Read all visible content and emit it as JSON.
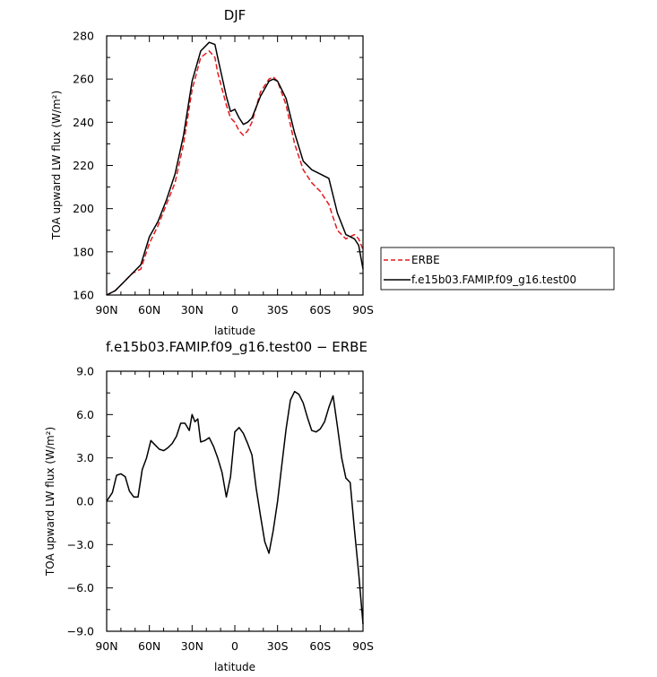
{
  "chart_data": [
    {
      "type": "line",
      "title": "DJF",
      "xlabel": "latitude",
      "ylabel": "TOA upward LW flux (W/m²)",
      "xlim": [
        90,
        -90
      ],
      "ylim": [
        160,
        280
      ],
      "xticks": [
        90,
        60,
        30,
        0,
        -30,
        -60,
        -90
      ],
      "xtick_labels": [
        "90N",
        "60N",
        "30N",
        "0",
        "30S",
        "60S",
        "90S"
      ],
      "yticks": [
        160,
        180,
        200,
        220,
        240,
        260,
        280
      ],
      "ytick_labels": [
        "160",
        "180",
        "200",
        "220",
        "240",
        "260",
        "280"
      ],
      "grid": false,
      "legend": "right",
      "series": [
        {
          "name": "ERBE",
          "color": "#e41a1c",
          "dash": "dashed",
          "x": [
            90,
            84,
            78,
            72,
            66,
            60,
            54,
            48,
            42,
            36,
            30,
            24,
            18,
            14,
            12,
            6,
            3,
            0,
            -3,
            -6,
            -9,
            -12,
            -18,
            -24,
            -27,
            -30,
            -36,
            -42,
            -48,
            -54,
            -60,
            -66,
            -72,
            -78,
            -84,
            -87,
            -90
          ],
          "y": [
            160,
            162,
            166,
            170,
            172,
            184,
            192,
            202,
            212,
            230,
            255,
            270,
            273,
            270,
            263,
            248,
            242,
            240,
            236,
            234,
            236,
            240,
            254,
            260,
            261,
            259,
            248,
            230,
            218,
            212,
            208,
            202,
            190,
            186,
            188,
            186,
            181
          ]
        },
        {
          "name": "f.e15b03.FAMIP.f09_g16.test00",
          "color": "#000000",
          "dash": "solid",
          "x": [
            90,
            84,
            78,
            72,
            66,
            60,
            54,
            48,
            42,
            36,
            30,
            24,
            18,
            14,
            12,
            6,
            3,
            0,
            -3,
            -6,
            -9,
            -12,
            -18,
            -24,
            -27,
            -30,
            -36,
            -42,
            -48,
            -54,
            -60,
            -66,
            -72,
            -78,
            -84,
            -87,
            -90
          ],
          "y": [
            160,
            162,
            166,
            170,
            174,
            187,
            194,
            204,
            216,
            234,
            259,
            273,
            277,
            276,
            270,
            252,
            245,
            246,
            242,
            239,
            240,
            242,
            252,
            259,
            260,
            259,
            251,
            235,
            222,
            218,
            216,
            214,
            198,
            188,
            186,
            183,
            172
          ]
        }
      ]
    },
    {
      "type": "line",
      "title": "f.e15b03.FAMIP.f09_g16.test00 − ERBE",
      "xlabel": "latitude",
      "ylabel": "TOA upward LW flux (W/m²)",
      "xlim": [
        90,
        -90
      ],
      "ylim": [
        -9,
        9
      ],
      "xticks": [
        90,
        60,
        30,
        0,
        -30,
        -60,
        -90
      ],
      "xtick_labels": [
        "90N",
        "60N",
        "30N",
        "0",
        "30S",
        "60S",
        "90S"
      ],
      "yticks": [
        -9,
        -6,
        -3,
        0,
        3,
        6,
        9
      ],
      "ytick_labels": [
        "−9.0",
        "−6.0",
        "−3.0",
        "0.0",
        "3.0",
        "6.0",
        "9.0"
      ],
      "grid": false,
      "series": [
        {
          "color": "#000000",
          "dash": "solid",
          "x": [
            90,
            86,
            83,
            80,
            77,
            74,
            71,
            68,
            65,
            62,
            59,
            56,
            53,
            50,
            47,
            44,
            41,
            38,
            35,
            32,
            30,
            28,
            26,
            24,
            21,
            18,
            15,
            12,
            9,
            6,
            3,
            0,
            -3,
            -6,
            -9,
            -12,
            -15,
            -18,
            -21,
            -24,
            -27,
            -30,
            -33,
            -36,
            -39,
            -42,
            -45,
            -48,
            -51,
            -54,
            -57,
            -60,
            -63,
            -66,
            -69,
            -72,
            -75,
            -78,
            -81,
            -84,
            -87,
            -90
          ],
          "y": [
            0.0,
            0.6,
            1.8,
            1.9,
            1.7,
            0.7,
            0.3,
            0.3,
            2.2,
            3.0,
            4.2,
            3.9,
            3.6,
            3.5,
            3.7,
            4.0,
            4.5,
            5.4,
            5.4,
            4.9,
            6.0,
            5.5,
            5.7,
            4.1,
            4.2,
            4.4,
            3.8,
            3.0,
            2.0,
            0.3,
            1.7,
            4.8,
            5.1,
            4.7,
            4.0,
            3.2,
            0.9,
            -1.0,
            -2.8,
            -3.6,
            -2.0,
            0.0,
            2.5,
            5.0,
            7.0,
            7.6,
            7.4,
            6.8,
            5.8,
            4.9,
            4.8,
            5.0,
            5.5,
            6.5,
            7.3,
            5.2,
            3.0,
            1.6,
            1.3,
            -2.0,
            -5.0,
            -8.5
          ]
        }
      ]
    }
  ]
}
